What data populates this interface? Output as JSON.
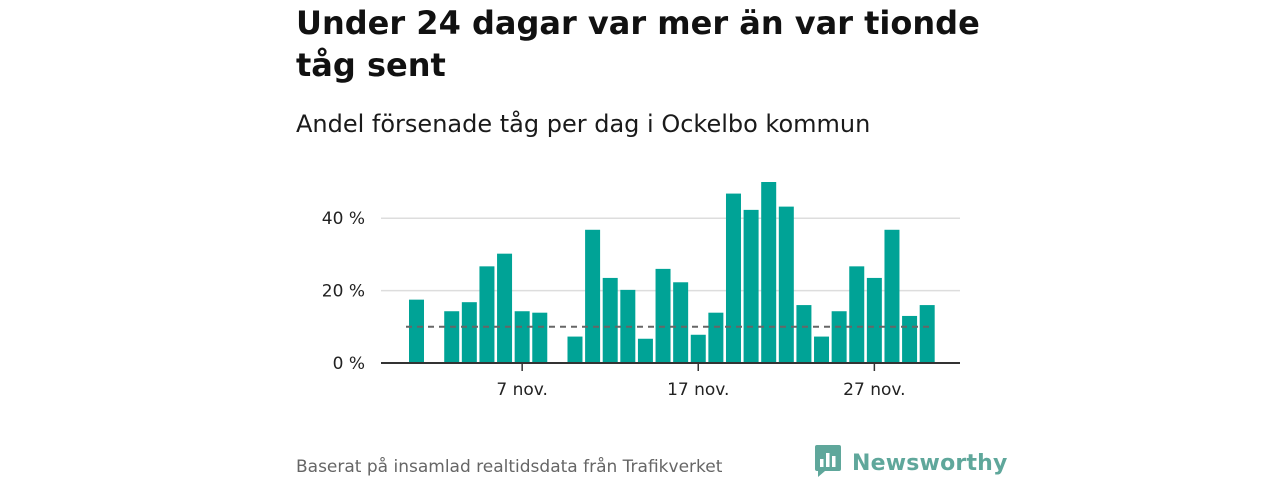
{
  "title": "Under 24 dagar var mer än var tionde tåg sent",
  "subtitle": "Andel försenade tåg per dag i Ockelbo kommun",
  "source": "Baserat på insamlad realtidsdata från Trafikverket",
  "brand": {
    "name": "Newsworthy",
    "color": "#5fa79b",
    "icon": "newsworthy-logo-icon"
  },
  "colors": {
    "bar": "#00a396",
    "grid": "#dddddd",
    "axis": "#333333",
    "reference": "#666666"
  },
  "chart_data": {
    "type": "bar",
    "x_unit": "day of November",
    "x": [
      1,
      2,
      3,
      4,
      5,
      6,
      7,
      8,
      9,
      10,
      11,
      12,
      13,
      14,
      15,
      16,
      17,
      18,
      19,
      20,
      21,
      22,
      23,
      24,
      25,
      26,
      27,
      28,
      29,
      30
    ],
    "values": [
      17.5,
      null,
      14.3,
      16.8,
      26.7,
      30.2,
      14.3,
      13.9,
      null,
      7.3,
      36.8,
      23.5,
      20.2,
      6.7,
      26.0,
      22.3,
      7.8,
      13.9,
      46.8,
      42.3,
      50.0,
      43.2,
      16.0,
      7.3,
      14.3,
      26.7,
      23.5,
      36.8,
      13.0,
      16.0
    ],
    "unit": "%",
    "reference_line": 10,
    "ylim": [
      0,
      50
    ],
    "yticks": [
      {
        "value": 0,
        "label": "0 %"
      },
      {
        "value": 20,
        "label": "20 %"
      },
      {
        "value": 40,
        "label": "40 %"
      }
    ],
    "xticks": [
      {
        "value": 7,
        "label": "7 nov."
      },
      {
        "value": 17,
        "label": "17 nov."
      },
      {
        "value": 27,
        "label": "27 nov."
      }
    ],
    "grid": true,
    "xlabel": "",
    "ylabel": ""
  }
}
